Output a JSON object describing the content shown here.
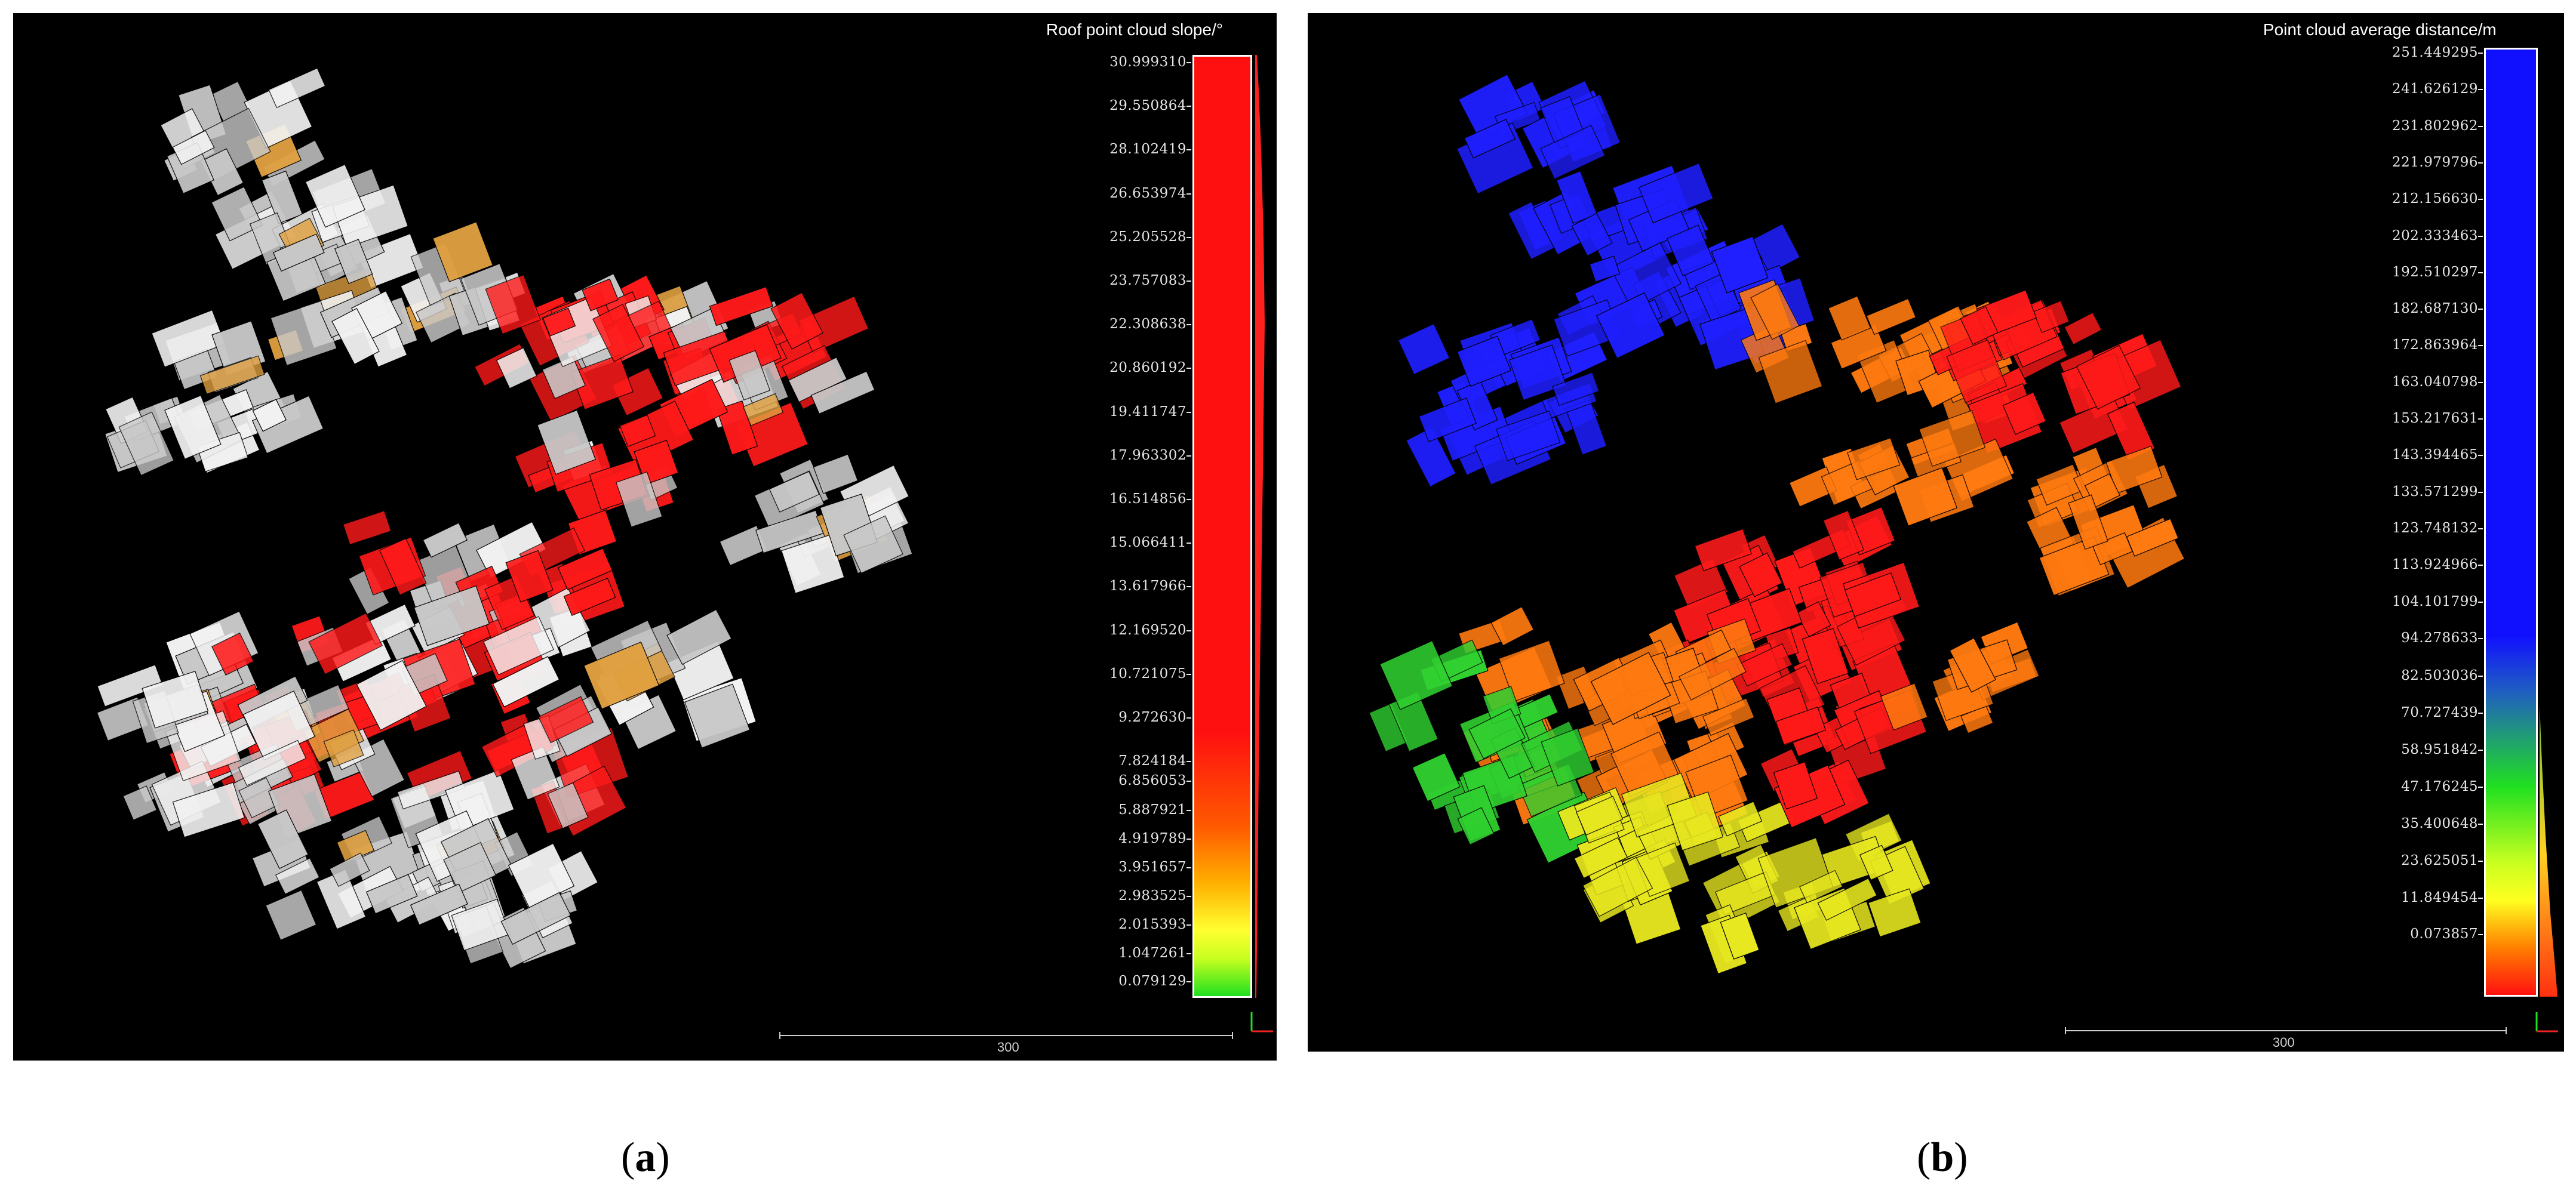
{
  "panel_a": {
    "colorbar_title": "Roof point cloud slope/°",
    "ticks": [
      "30.999310",
      "29.550864",
      "28.102419",
      "26.653974",
      "25.205528",
      "23.757083",
      "22.308638",
      "20.860192",
      "19.411747",
      "17.963302",
      "16.514856",
      "15.066411",
      "13.617966",
      "12.169520",
      "10.721075",
      "9.272630",
      "7.824184",
      "6.856053",
      "5.887921",
      "4.919789",
      "3.951657",
      "2.983525",
      "2.015393",
      "1.047261",
      "0.079129"
    ],
    "scale_label": "300",
    "caption_letter": "a"
  },
  "panel_b": {
    "colorbar_title": "Point cloud average distance/m",
    "ticks": [
      "251.449295",
      "241.626129",
      "231.802962",
      "221.979796",
      "212.156630",
      "202.333463",
      "192.510297",
      "182.687130",
      "172.863964",
      "163.040798",
      "153.217631",
      "143.394465",
      "133.571299",
      "123.748132",
      "113.924966",
      "104.101799",
      "94.278633",
      "82.503036",
      "70.727439",
      "58.951842",
      "47.176245",
      "35.400648",
      "23.625051",
      "11.849454",
      "0.073857"
    ],
    "scale_label": "300",
    "caption_letter": "b"
  },
  "colors": {
    "background": "#000000",
    "slope_high": "#ff1a1a",
    "slope_low": "#22cc22",
    "distance_far": "#1f1fff",
    "distance_near": "#ff1a1a"
  }
}
